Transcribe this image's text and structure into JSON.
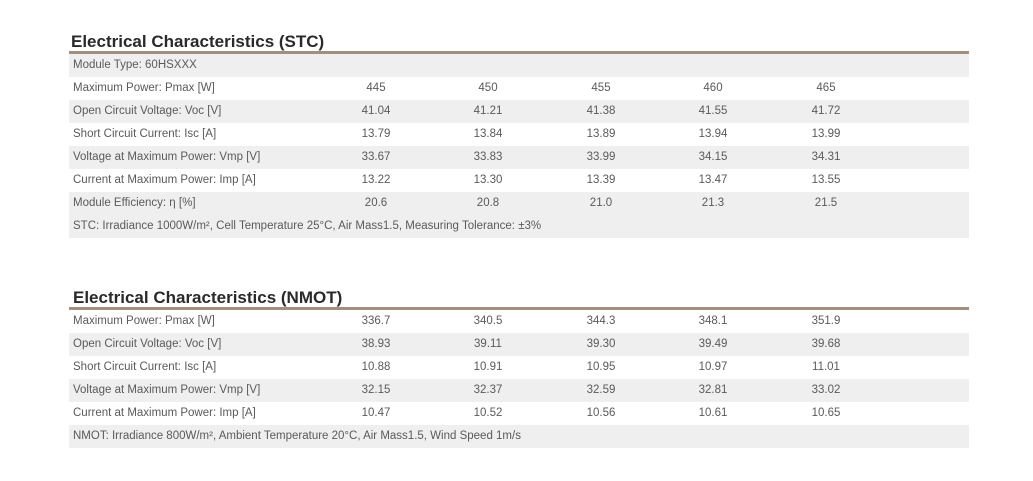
{
  "stc": {
    "title": "Electrical Characteristics (STC)",
    "module_type": "Module Type: 60HSXXX",
    "rows": [
      {
        "label": "Maximum Power: Pmax [W]",
        "values": [
          "445",
          "450",
          "455",
          "460",
          "465"
        ]
      },
      {
        "label": "Open Circuit Voltage: Voc [V]",
        "values": [
          "41.04",
          "41.21",
          "41.38",
          "41.55",
          "41.72"
        ]
      },
      {
        "label": "Short Circuit Current: Isc [A]",
        "values": [
          "13.79",
          "13.84",
          "13.89",
          "13.94",
          "13.99"
        ]
      },
      {
        "label": "Voltage at Maximum Power: Vmp [V]",
        "values": [
          "33.67",
          "33.83",
          "33.99",
          "34.15",
          "34.31"
        ]
      },
      {
        "label": "Current at Maximum Power: Imp [A]",
        "values": [
          "13.22",
          "13.30",
          "13.39",
          "13.47",
          "13.55"
        ]
      },
      {
        "label": "Module Efficiency: η [%]",
        "values": [
          "20.6",
          "20.8",
          "21.0",
          "21.3",
          "21.5"
        ]
      }
    ],
    "note": "STC: Irradiance 1000W/m², Cell Temperature 25°C, Air Mass1.5, Measuring Tolerance: ±3%"
  },
  "nmot": {
    "title": "Electrical Characteristics (NMOT)",
    "rows": [
      {
        "label": "Maximum Power: Pmax [W]",
        "values": [
          "336.7",
          "340.5",
          "344.3",
          "348.1",
          "351.9"
        ]
      },
      {
        "label": "Open Circuit Voltage: Voc [V]",
        "values": [
          "38.93",
          "39.11",
          "39.30",
          "39.49",
          "39.68"
        ]
      },
      {
        "label": "Short Circuit Current: Isc [A]",
        "values": [
          "10.88",
          "10.91",
          "10.95",
          "10.97",
          "11.01"
        ]
      },
      {
        "label": "Voltage at Maximum Power: Vmp [V]",
        "values": [
          "32.15",
          "32.37",
          "32.59",
          "32.81",
          "33.02"
        ]
      },
      {
        "label": "Current at Maximum Power: Imp [A]",
        "values": [
          "10.47",
          "10.52",
          "10.56",
          "10.61",
          "10.65"
        ]
      }
    ],
    "note": "NMOT: Irradiance 800W/m², Ambient Temperature 20°C, Air Mass1.5, Wind Speed 1m/s"
  },
  "colors": {
    "title_rule": "#a38e80",
    "row_shade": "#efefef",
    "title_text": "#2a2a2a",
    "body_text": "#5a5a5a"
  }
}
